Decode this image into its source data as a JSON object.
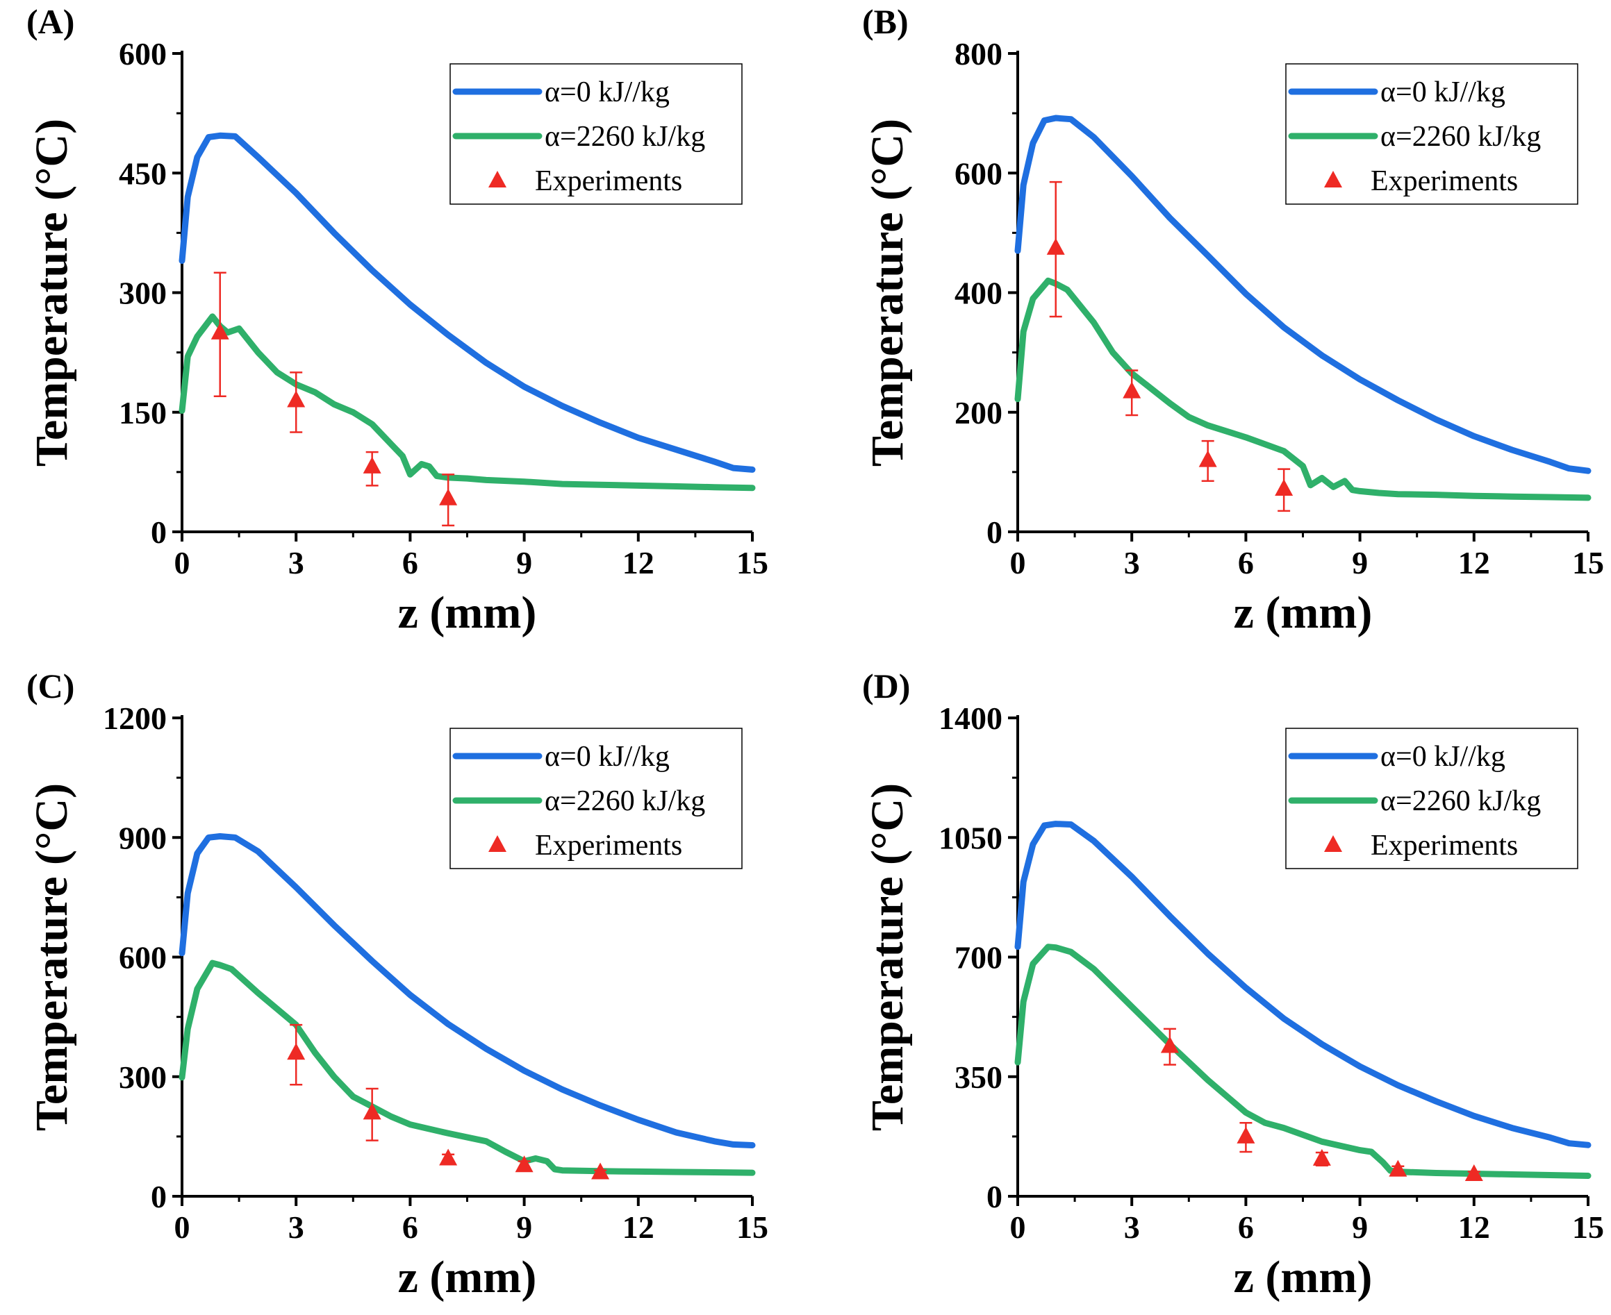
{
  "colors": {
    "series_blue": "#1f6fe0",
    "series_green": "#2fb06a",
    "experiments": "#ee2a24",
    "axis": "#000000"
  },
  "chart_data": [
    {
      "panel_label": "(A)",
      "type": "line",
      "xlabel": "z (mm)",
      "ylabel": "Temperature (°C)",
      "xlim": [
        0,
        15
      ],
      "ylim": [
        0,
        600
      ],
      "xticks": [
        0,
        3,
        6,
        9,
        12,
        15
      ],
      "yticks": [
        0,
        150,
        300,
        450,
        600
      ],
      "legend_position": "top-right",
      "series": [
        {
          "name": "α=0 kJ//kg",
          "color": "#1f6fe0",
          "x": [
            0,
            0.15,
            0.4,
            0.7,
            1.0,
            1.4,
            2,
            3,
            4,
            5,
            6,
            7,
            8,
            9,
            10,
            11,
            12,
            13,
            14,
            14.5,
            15
          ],
          "y": [
            340,
            420,
            470,
            495,
            497,
            496,
            470,
            425,
            375,
            328,
            285,
            247,
            212,
            182,
            158,
            137,
            118,
            103,
            88,
            80,
            78
          ]
        },
        {
          "name": "α=2260 kJ/kg",
          "color": "#2fb06a",
          "x": [
            0,
            0.15,
            0.4,
            0.8,
            1.0,
            1.2,
            1.5,
            2,
            2.5,
            3,
            3.5,
            4,
            4.5,
            5,
            5.5,
            5.8,
            6.0,
            6.3,
            6.5,
            6.7,
            7.0,
            7.5,
            8,
            9,
            10,
            11,
            12,
            13,
            14,
            15
          ],
          "y": [
            152,
            220,
            245,
            270,
            258,
            250,
            255,
            225,
            200,
            185,
            175,
            160,
            150,
            135,
            110,
            95,
            72,
            85,
            82,
            70,
            68,
            67,
            65,
            63,
            60,
            59,
            58,
            57,
            56,
            55
          ]
        },
        {
          "name": "Experiments",
          "type": "scatter",
          "color": "#ee2a24",
          "x": [
            1,
            3,
            5,
            7
          ],
          "y": [
            250,
            165,
            82,
            42
          ],
          "err_low": [
            170,
            125,
            58,
            8
          ],
          "err_high": [
            325,
            200,
            100,
            72
          ]
        }
      ]
    },
    {
      "panel_label": "(B)",
      "type": "line",
      "xlabel": "z (mm)",
      "ylabel": "Temperature (°C)",
      "xlim": [
        0,
        15
      ],
      "ylim": [
        0,
        800
      ],
      "xticks": [
        0,
        3,
        6,
        9,
        12,
        15
      ],
      "yticks": [
        0,
        200,
        400,
        600,
        800
      ],
      "legend_position": "top-right",
      "series": [
        {
          "name": "α=0 kJ//kg",
          "color": "#1f6fe0",
          "x": [
            0,
            0.15,
            0.4,
            0.7,
            1.0,
            1.4,
            2,
            3,
            4,
            5,
            6,
            7,
            8,
            9,
            10,
            11,
            12,
            13,
            14,
            14.5,
            15
          ],
          "y": [
            470,
            580,
            650,
            688,
            692,
            690,
            660,
            595,
            525,
            462,
            398,
            342,
            295,
            255,
            220,
            188,
            160,
            137,
            117,
            106,
            102
          ]
        },
        {
          "name": "α=2260 kJ/kg",
          "color": "#2fb06a",
          "x": [
            0,
            0.15,
            0.4,
            0.8,
            1.0,
            1.3,
            2,
            2.5,
            3,
            3.5,
            4,
            4.5,
            5,
            6,
            7,
            7.5,
            7.7,
            8.0,
            8.3,
            8.6,
            8.8,
            9.0,
            9.5,
            10,
            11,
            12,
            13,
            14,
            15
          ],
          "y": [
            222,
            335,
            390,
            420,
            415,
            405,
            350,
            300,
            265,
            240,
            215,
            192,
            178,
            158,
            135,
            110,
            78,
            90,
            75,
            85,
            70,
            68,
            65,
            63,
            62,
            60,
            59,
            58,
            57
          ]
        },
        {
          "name": "Experiments",
          "type": "scatter",
          "color": "#ee2a24",
          "x": [
            1,
            3,
            5,
            7
          ],
          "y": [
            475,
            235,
            120,
            72
          ],
          "err_low": [
            360,
            195,
            85,
            35
          ],
          "err_high": [
            585,
            270,
            152,
            105
          ]
        }
      ]
    },
    {
      "panel_label": "(C)",
      "type": "line",
      "xlabel": "z (mm)",
      "ylabel": "Temperature (°C)",
      "xlim": [
        0,
        15
      ],
      "ylim": [
        0,
        1200
      ],
      "xticks": [
        0,
        3,
        6,
        9,
        12,
        15
      ],
      "yticks": [
        0,
        300,
        600,
        900,
        1200
      ],
      "legend_position": "top-right",
      "series": [
        {
          "name": "α=0 kJ//kg",
          "color": "#1f6fe0",
          "x": [
            0,
            0.15,
            0.4,
            0.7,
            1.0,
            1.4,
            2,
            3,
            4,
            5,
            6,
            7,
            8,
            9,
            10,
            11,
            12,
            13,
            14,
            14.5,
            15
          ],
          "y": [
            610,
            760,
            860,
            900,
            903,
            900,
            865,
            775,
            680,
            590,
            505,
            432,
            370,
            315,
            268,
            228,
            192,
            160,
            138,
            130,
            128
          ]
        },
        {
          "name": "α=2260 kJ/kg",
          "color": "#2fb06a",
          "x": [
            0,
            0.15,
            0.4,
            0.8,
            1.0,
            1.3,
            2,
            2.5,
            3,
            3.5,
            4,
            4.5,
            5,
            5.5,
            6,
            7,
            8,
            8.5,
            9,
            9.3,
            9.6,
            9.8,
            10,
            11,
            12,
            13,
            14,
            15
          ],
          "y": [
            298,
            420,
            520,
            585,
            580,
            570,
            510,
            470,
            430,
            360,
            300,
            250,
            225,
            200,
            180,
            158,
            138,
            112,
            88,
            95,
            88,
            68,
            65,
            63,
            62,
            61,
            60,
            59
          ]
        },
        {
          "name": "Experiments",
          "type": "scatter",
          "color": "#ee2a24",
          "x": [
            3,
            5,
            7,
            9,
            11
          ],
          "y": [
            360,
            210,
            95,
            78,
            60
          ],
          "err_low": [
            280,
            140,
            85,
            72,
            55
          ],
          "err_high": [
            430,
            270,
            105,
            88,
            65
          ]
        }
      ]
    },
    {
      "panel_label": "(D)",
      "type": "line",
      "xlabel": "z (mm)",
      "ylabel": "Temperature (°C)",
      "xlim": [
        0,
        15
      ],
      "ylim": [
        0,
        1400
      ],
      "xticks": [
        0,
        3,
        6,
        9,
        12,
        15
      ],
      "yticks": [
        0,
        350,
        700,
        1050,
        1400
      ],
      "legend_position": "top-right",
      "series": [
        {
          "name": "α=0 kJ//kg",
          "color": "#1f6fe0",
          "x": [
            0,
            0.15,
            0.4,
            0.7,
            1.0,
            1.4,
            2,
            3,
            4,
            5,
            6,
            7,
            8,
            9,
            10,
            11,
            12,
            13,
            14,
            14.5,
            15
          ],
          "y": [
            730,
            920,
            1030,
            1085,
            1090,
            1088,
            1040,
            935,
            820,
            710,
            610,
            520,
            445,
            380,
            325,
            278,
            235,
            200,
            172,
            155,
            150
          ]
        },
        {
          "name": "α=2260 kJ/kg",
          "color": "#2fb06a",
          "x": [
            0,
            0.15,
            0.4,
            0.8,
            1.0,
            1.4,
            2,
            3,
            4,
            5,
            6,
            6.5,
            7,
            8,
            9,
            9.3,
            9.6,
            9.8,
            10,
            11,
            12,
            13,
            14,
            15
          ],
          "y": [
            392,
            570,
            680,
            730,
            728,
            715,
            665,
            555,
            445,
            340,
            245,
            215,
            200,
            160,
            135,
            130,
            100,
            75,
            72,
            68,
            66,
            64,
            62,
            60
          ]
        },
        {
          "name": "Experiments",
          "type": "scatter",
          "color": "#ee2a24",
          "x": [
            4,
            6,
            8,
            10,
            12
          ],
          "y": [
            440,
            175,
            110,
            78,
            65
          ],
          "err_low": [
            385,
            130,
            90,
            70,
            58
          ],
          "err_high": [
            490,
            215,
            128,
            88,
            72
          ]
        }
      ]
    }
  ]
}
